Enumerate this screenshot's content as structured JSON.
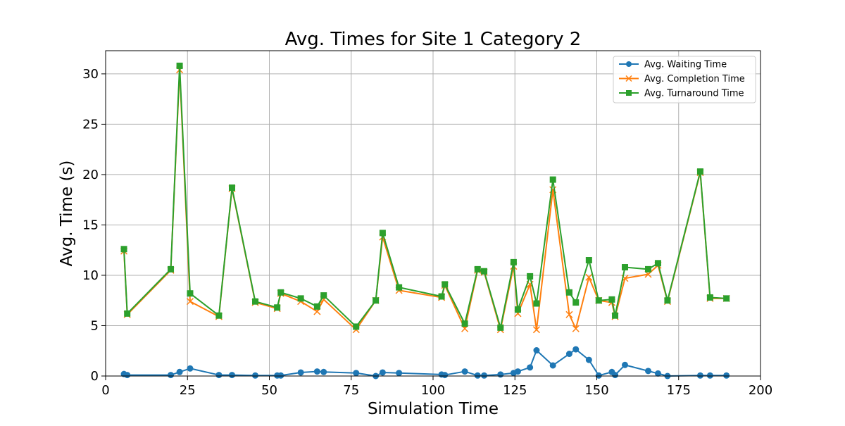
{
  "chart_data": {
    "type": "line",
    "title": "Avg. Times for Site 1 Category 2",
    "xlabel": "Simulation Time",
    "ylabel": "Avg. Time (s)",
    "xlim": [
      0,
      200
    ],
    "ylim": [
      0,
      32.3
    ],
    "xticks": [
      0,
      25,
      50,
      75,
      100,
      125,
      150,
      175,
      200
    ],
    "yticks": [
      0,
      5,
      10,
      15,
      20,
      25,
      30
    ],
    "grid": true,
    "legend_position": "top-right",
    "series": [
      {
        "name": "Avg. Waiting Time",
        "color": "#1f77b4",
        "marker": "circle",
        "x": [
          5.6,
          6.6,
          19.9,
          22.6,
          25.8,
          34.6,
          38.6,
          45.7,
          52.4,
          53.5,
          59.6,
          64.6,
          66.6,
          76.5,
          82.5,
          84.6,
          89.6,
          102.6,
          103.6,
          109.7,
          113.6,
          115.6,
          120.6,
          124.6,
          125.9,
          129.6,
          131.6,
          136.6,
          141.6,
          143.6,
          147.6,
          150.6,
          154.6,
          155.6,
          158.6,
          165.7,
          168.7,
          171.6,
          181.6,
          184.6,
          189.6
        ],
        "y": [
          0.2,
          0.1,
          0.1,
          0.4,
          0.75,
          0.1,
          0.1,
          0.05,
          0.05,
          0.05,
          0.35,
          0.45,
          0.4,
          0.3,
          0.0,
          0.35,
          0.3,
          0.15,
          0.1,
          0.45,
          0.05,
          0.05,
          0.15,
          0.3,
          0.45,
          0.85,
          2.55,
          1.05,
          2.2,
          2.65,
          1.6,
          0.05,
          0.4,
          0.1,
          1.1,
          0.5,
          0.25,
          0.0,
          0.05,
          0.05,
          0.05
        ]
      },
      {
        "name": "Avg. Completion Time",
        "color": "#ff7f0e",
        "marker": "x",
        "x": [
          5.6,
          6.6,
          19.9,
          22.6,
          25.8,
          34.6,
          38.6,
          45.7,
          52.4,
          53.5,
          59.6,
          64.6,
          66.6,
          76.5,
          82.5,
          84.6,
          89.6,
          102.6,
          103.6,
          109.7,
          113.6,
          115.6,
          120.6,
          124.6,
          125.9,
          129.6,
          131.6,
          136.6,
          141.6,
          143.6,
          147.6,
          150.6,
          154.6,
          155.6,
          158.6,
          165.7,
          168.7,
          171.6,
          181.6,
          184.6,
          189.6
        ],
        "y": [
          12.4,
          6.1,
          10.5,
          30.4,
          7.4,
          5.9,
          18.6,
          7.3,
          6.7,
          8.2,
          7.4,
          6.4,
          7.6,
          4.6,
          7.5,
          13.8,
          8.5,
          7.8,
          9.0,
          4.7,
          10.5,
          10.3,
          4.6,
          10.9,
          6.2,
          9.1,
          4.6,
          18.5,
          6.1,
          4.7,
          9.8,
          7.5,
          7.3,
          5.9,
          9.7,
          10.1,
          11.0,
          7.4,
          20.2,
          7.7,
          7.7
        ]
      },
      {
        "name": "Avg. Turnaround Time",
        "color": "#2ca02c",
        "marker": "square",
        "x": [
          5.6,
          6.6,
          19.9,
          22.6,
          25.8,
          34.6,
          38.6,
          45.7,
          52.4,
          53.5,
          59.6,
          64.6,
          66.6,
          76.5,
          82.5,
          84.6,
          89.6,
          102.6,
          103.6,
          109.7,
          113.6,
          115.6,
          120.6,
          124.6,
          125.9,
          129.6,
          131.6,
          136.6,
          141.6,
          143.6,
          147.6,
          150.6,
          154.6,
          155.6,
          158.6,
          165.7,
          168.7,
          171.6,
          181.6,
          184.6,
          189.6
        ],
        "y": [
          12.6,
          6.2,
          10.6,
          30.8,
          8.2,
          6.0,
          18.7,
          7.4,
          6.8,
          8.3,
          7.7,
          6.9,
          8.0,
          4.9,
          7.5,
          14.2,
          8.8,
          7.9,
          9.1,
          5.2,
          10.6,
          10.4,
          4.8,
          11.3,
          6.6,
          9.9,
          7.2,
          19.5,
          8.3,
          7.3,
          11.5,
          7.5,
          7.6,
          6.0,
          10.8,
          10.6,
          11.2,
          7.5,
          20.3,
          7.8,
          7.7
        ]
      }
    ]
  }
}
